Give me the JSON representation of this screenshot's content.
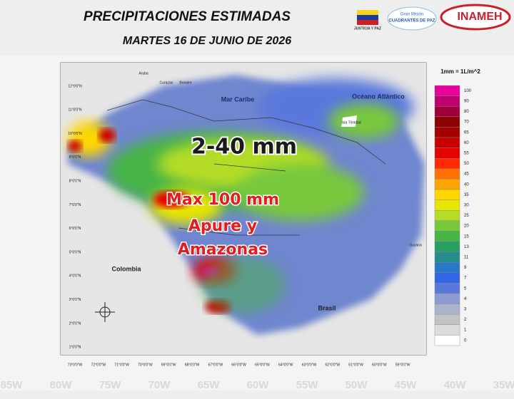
{
  "header": {
    "title": "PRECIPITACIONES ESTIMADAS",
    "date": "MARTES 16 DE JUNIO DE 2026"
  },
  "logos": {
    "ministry": "JUSTICIA Y PAZ",
    "mission_top": "Gran Misión",
    "mission": "CUADRANTES DE PAZ",
    "inameh": "INAMEH"
  },
  "map": {
    "overlay": {
      "range": "2-40 mm",
      "max": "Max 100 mm",
      "region_1": "Apure y",
      "region_2": "Amazonas"
    },
    "places": {
      "sea": "Mar Caribe",
      "ocean": "Océano Atlántico",
      "colombia": "Colombia",
      "brasil": "Brasil",
      "guyana": "Guyana",
      "aruba": "Aruba",
      "curazao": "Curazao",
      "bonaire": "Bonaire",
      "trinidad": "Isla Trinidad"
    },
    "lat_labels": [
      "12°0'0\"N",
      "11°0'0\"N",
      "10°0'0\"N",
      "9°0'0\"N",
      "8°0'0\"N",
      "7°0'0\"N",
      "6°0'0\"N",
      "5°0'0\"N",
      "4°0'0\"N",
      "3°0'0\"N",
      "2°0'0\"N",
      "1°0'0\"N"
    ],
    "lon_labels": [
      "73°0'0\"W",
      "72°0'0\"W",
      "71°0'0\"W",
      "70°0'0\"W",
      "69°0'0\"W",
      "68°0'0\"W",
      "67°0'0\"W",
      "66°0'0\"W",
      "65°0'0\"W",
      "64°0'0\"W",
      "63°0'0\"W",
      "62°0'0\"W",
      "61°0'0\"W",
      "60°0'0\"W",
      "59°0'0\"W"
    ]
  },
  "legend": {
    "title": "1mm = 1L/m^2",
    "items": [
      {
        "label": "100",
        "color": "#e8009a"
      },
      {
        "label": "90",
        "color": "#c0006e"
      },
      {
        "label": "80",
        "color": "#a0003a"
      },
      {
        "label": "70",
        "color": "#8b0000"
      },
      {
        "label": "65",
        "color": "#a50000"
      },
      {
        "label": "60",
        "color": "#c80000"
      },
      {
        "label": "55",
        "color": "#e60000"
      },
      {
        "label": "50",
        "color": "#ff2a00"
      },
      {
        "label": "45",
        "color": "#ff7000"
      },
      {
        "label": "40",
        "color": "#ffa500"
      },
      {
        "label": "35",
        "color": "#ffd700"
      },
      {
        "label": "30",
        "color": "#e6e600"
      },
      {
        "label": "25",
        "color": "#b4dc28"
      },
      {
        "label": "20",
        "color": "#78c83c"
      },
      {
        "label": "15",
        "color": "#46b446"
      },
      {
        "label": "13",
        "color": "#28a064"
      },
      {
        "label": "11",
        "color": "#288c8c"
      },
      {
        "label": "9",
        "color": "#2878c8"
      },
      {
        "label": "7",
        "color": "#3264e6"
      },
      {
        "label": "5",
        "color": "#5a78dc"
      },
      {
        "label": "4",
        "color": "#8c9bd2"
      },
      {
        "label": "3",
        "color": "#aab4c8"
      },
      {
        "label": "2",
        "color": "#c3c3c3"
      },
      {
        "label": "1",
        "color": "#dcdcdc"
      },
      {
        "label": "0",
        "color": "#ffffff"
      }
    ]
  },
  "background": {
    "lon_marks": [
      "85W",
      "80W",
      "75W",
      "70W",
      "65W",
      "60W",
      "55W",
      "50W",
      "45W",
      "40W",
      "35W"
    ]
  }
}
